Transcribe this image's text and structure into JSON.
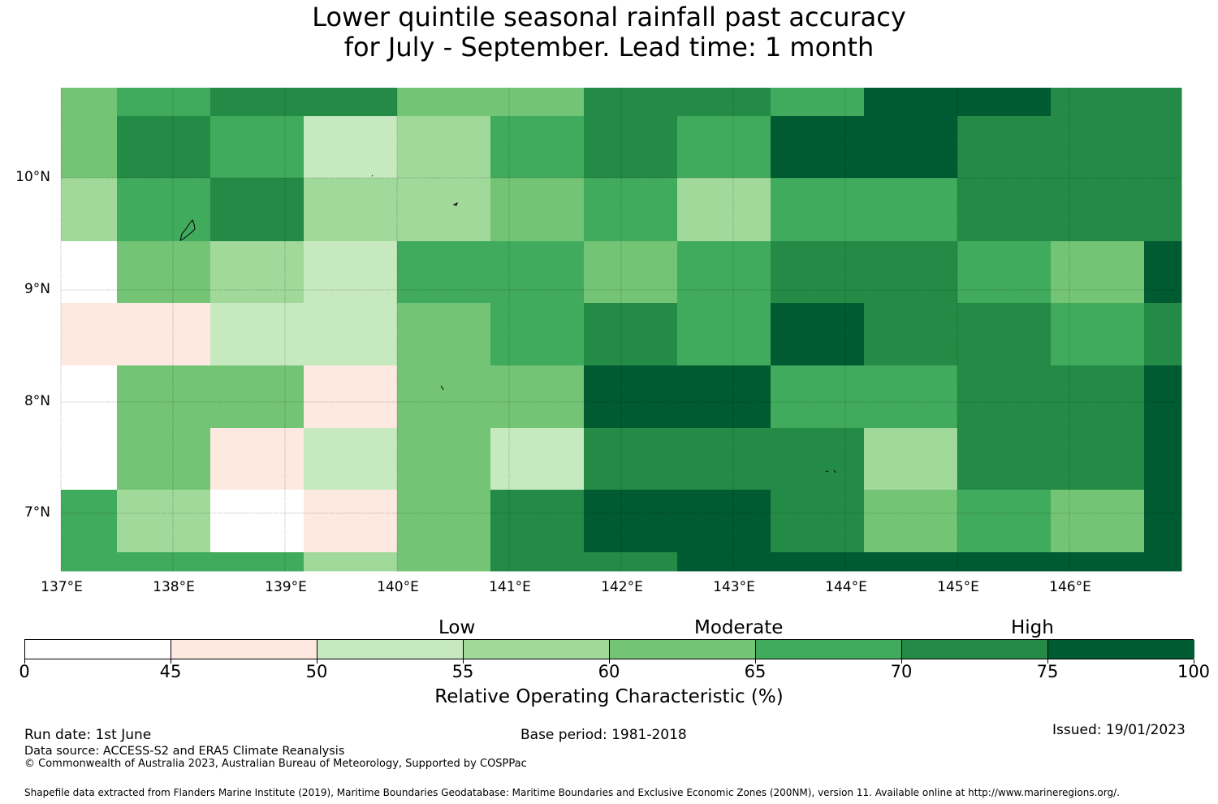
{
  "title": {
    "line1": "Lower quintile seasonal rainfall past accuracy",
    "line2": "for July - September. Lead time: 1 month"
  },
  "map": {
    "lon_labels": [
      "137°E",
      "138°E",
      "139°E",
      "140°E",
      "141°E",
      "142°E",
      "143°E",
      "144°E",
      "145°E",
      "146°E"
    ],
    "lat_labels": [
      "10°N",
      "9°N",
      "8°N",
      "7°N"
    ],
    "grid_rows": [
      [
        4,
        5,
        6,
        6,
        4,
        4,
        6,
        6,
        5,
        7,
        7,
        6
      ],
      [
        4,
        6,
        5,
        2,
        3,
        5,
        6,
        5,
        7,
        7,
        6,
        6
      ],
      [
        3,
        5,
        6,
        3,
        3,
        4,
        5,
        3,
        5,
        5,
        6,
        6
      ],
      [
        0,
        4,
        3,
        2,
        5,
        5,
        4,
        5,
        6,
        6,
        5,
        4,
        7
      ],
      [
        1,
        1,
        2,
        2,
        4,
        5,
        6,
        5,
        7,
        6,
        6,
        5,
        6
      ],
      [
        0,
        4,
        4,
        1,
        4,
        4,
        7,
        7,
        5,
        5,
        6,
        6,
        7
      ],
      [
        0,
        4,
        1,
        2,
        4,
        2,
        6,
        6,
        6,
        3,
        6,
        6,
        7
      ],
      [
        5,
        3,
        0,
        1,
        4,
        6,
        7,
        7,
        6,
        4,
        5,
        4,
        7
      ],
      [
        5,
        5,
        5,
        3,
        4,
        6,
        6,
        7,
        7,
        7,
        7,
        7,
        7
      ]
    ],
    "colors": [
      "#ffffff",
      "#fee9e0",
      "#c7e9c0",
      "#a1d99b",
      "#74c476",
      "#41ab5d",
      "#238b45",
      "#005a32"
    ]
  },
  "colorbar": {
    "categories": {
      "low": "Low",
      "moderate": "Moderate",
      "high": "High"
    },
    "boundaries": [
      0,
      45,
      50,
      55,
      60,
      65,
      70,
      75,
      100
    ],
    "tick_labels": [
      "0",
      "45",
      "50",
      "55",
      "60",
      "65",
      "70",
      "75",
      "100"
    ],
    "label": "Relative Operating Characteristic (%)"
  },
  "footer": {
    "run_date": "Run date: 1st June",
    "base_period": "Base period: 1981-2018",
    "issued": "Issued: 19/01/2023",
    "data_source": "Data source: ACCESS-S2 and ERA5 Climate Reanalysis",
    "copyright": "© Commonwealth of Australia 2023, Australian Bureau of Meteorology, Supported by COSPPac",
    "shapefile": "Shapefile data extracted from Flanders Marine Institute (2019), Maritime Boundaries Geodatabase: Maritime Boundaries and Exclusive Economic Zones (200NM), version 11. Available online at http://www.marineregions.org/."
  }
}
